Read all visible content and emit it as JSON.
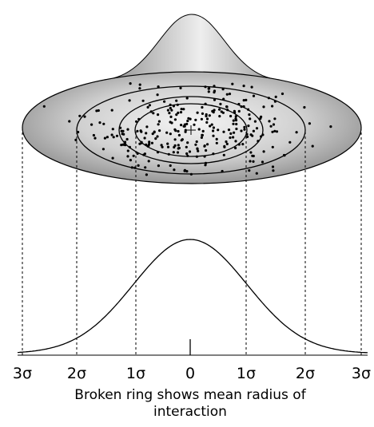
{
  "axis_labels": [
    "3σ",
    "2σ",
    "1σ",
    "0",
    "1σ",
    "2σ",
    "3σ"
  ],
  "caption": [
    "Broken ring shows mean radius of",
    "interaction"
  ]
}
